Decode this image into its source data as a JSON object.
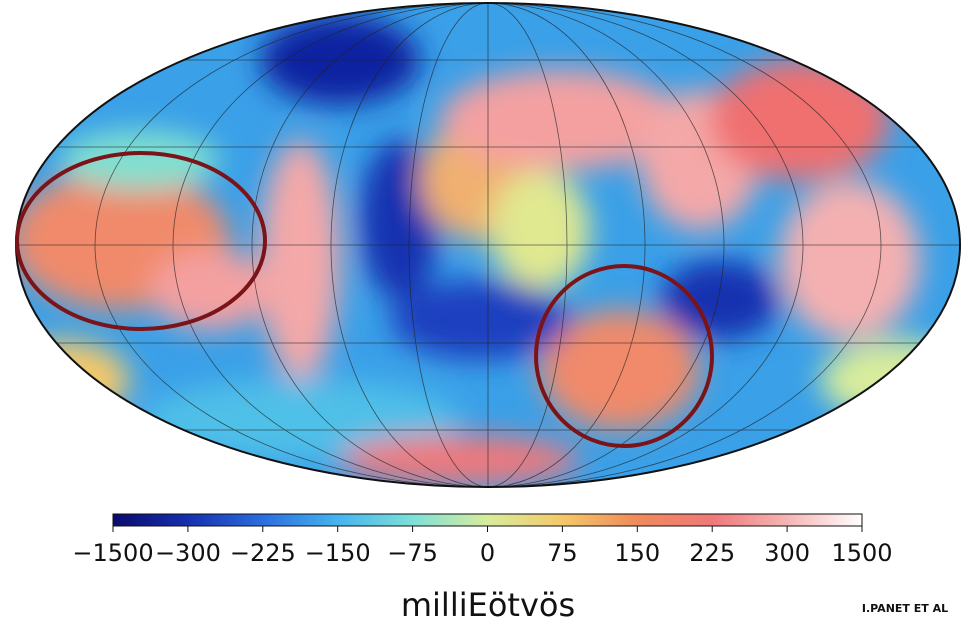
{
  "colorbar": {
    "ticks": [
      {
        "value": -1500,
        "label": "−1500"
      },
      {
        "value": -300,
        "label": "−300"
      },
      {
        "value": -225,
        "label": "−225"
      },
      {
        "value": -150,
        "label": "−150"
      },
      {
        "value": -75,
        "label": "−75"
      },
      0,
      75,
      150,
      225,
      300,
      1500
    ],
    "colors": [
      "#0a0a6e",
      "#1530b0",
      "#2a6ee0",
      "#45b4f0",
      "#7ee0d8",
      "#d8ec9c",
      "#f4c86a",
      "#f08a5a",
      "#f0787a",
      "#f6b4b4",
      "#ffffff"
    ],
    "unit": "milliEötvös"
  },
  "credit": "I.PANET ET AL"
}
